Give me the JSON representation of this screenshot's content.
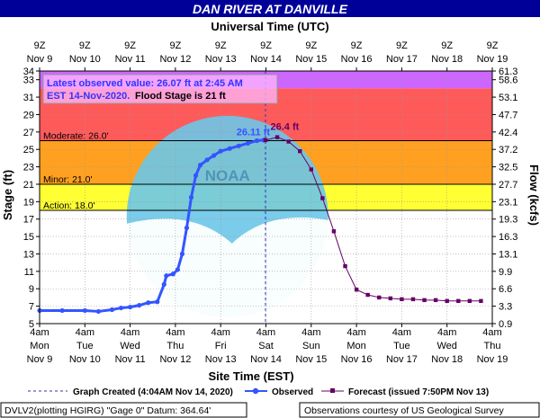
{
  "chart_data": {
    "type": "line",
    "title": "DAN RIVER AT DANVILLE",
    "top_axis_title": "Universal Time (UTC)",
    "bottom_axis_title": "Site Time (EST)",
    "ylabel": "Stage (ft)",
    "ylabel_right": "Flow (kcfs)",
    "ylim": [
      5,
      34
    ],
    "xlim_days": [
      0,
      10
    ],
    "y_ticks": [
      5,
      7,
      9,
      11,
      13,
      15,
      17,
      19,
      21,
      23,
      25,
      27,
      29,
      31,
      33,
      34
    ],
    "y_tick_labels": [
      "5",
      "7",
      "9",
      "11",
      "13",
      "15",
      "17",
      "19",
      "21",
      "23",
      "25",
      "27",
      "29",
      "31",
      "33",
      "34"
    ],
    "right_ticks": [
      {
        "stage": 5,
        "label": "0.9"
      },
      {
        "stage": 7,
        "label": "3.3"
      },
      {
        "stage": 9,
        "label": "6.6"
      },
      {
        "stage": 11,
        "label": "9.9"
      },
      {
        "stage": 13,
        "label": "13.1"
      },
      {
        "stage": 15,
        "label": "16.3"
      },
      {
        "stage": 17,
        "label": "19.3"
      },
      {
        "stage": 19,
        "label": "23.1"
      },
      {
        "stage": 21,
        "label": "27.7"
      },
      {
        "stage": 23,
        "label": "32.5"
      },
      {
        "stage": 25,
        "label": "37.2"
      },
      {
        "stage": 27,
        "label": "42.4"
      },
      {
        "stage": 29,
        "label": "47.7"
      },
      {
        "stage": 31,
        "label": "53.1"
      },
      {
        "stage": 33,
        "label": "58.6"
      },
      {
        "stage": 34,
        "label": "61.3"
      }
    ],
    "bottom_labels": [
      {
        "day": 0,
        "time": "4am",
        "dow": "Mon",
        "date": "Nov 9"
      },
      {
        "day": 1,
        "time": "4am",
        "dow": "Tue",
        "date": "Nov 10"
      },
      {
        "day": 2,
        "time": "4am",
        "dow": "Wed",
        "date": "Nov 11"
      },
      {
        "day": 3,
        "time": "4am",
        "dow": "Thu",
        "date": "Nov 12"
      },
      {
        "day": 4,
        "time": "4am",
        "dow": "Fri",
        "date": "Nov 13"
      },
      {
        "day": 5,
        "time": "4am",
        "dow": "Sat",
        "date": "Nov 14"
      },
      {
        "day": 6,
        "time": "4am",
        "dow": "Sun",
        "date": "Nov 15"
      },
      {
        "day": 7,
        "time": "4am",
        "dow": "Mon",
        "date": "Nov 16"
      },
      {
        "day": 8,
        "time": "4am",
        "dow": "Tue",
        "date": "Nov 17"
      },
      {
        "day": 9,
        "time": "4am",
        "dow": "Wed",
        "date": "Nov 18"
      },
      {
        "day": 10,
        "time": "4am",
        "dow": "Thu",
        "date": "Nov 19"
      }
    ],
    "top_labels": [
      {
        "day": 0,
        "time": "9Z",
        "date": "Nov  9"
      },
      {
        "day": 1,
        "time": "9Z",
        "date": "Nov 10"
      },
      {
        "day": 2,
        "time": "9Z",
        "date": "Nov 11"
      },
      {
        "day": 3,
        "time": "9Z",
        "date": "Nov 12"
      },
      {
        "day": 4,
        "time": "9Z",
        "date": "Nov 13"
      },
      {
        "day": 5,
        "time": "9Z",
        "date": "Nov 14"
      },
      {
        "day": 6,
        "time": "9Z",
        "date": "Nov 15"
      },
      {
        "day": 7,
        "time": "9Z",
        "date": "Nov 16"
      },
      {
        "day": 8,
        "time": "9Z",
        "date": "Nov 17"
      },
      {
        "day": 9,
        "time": "9Z",
        "date": "Nov 18"
      },
      {
        "day": 10,
        "time": "9Z",
        "date": "Nov 19"
      }
    ],
    "bands": [
      {
        "from": 32,
        "to": 34,
        "color": "#cc66ff"
      },
      {
        "from": 26,
        "to": 32,
        "color": "#ff5a5a"
      },
      {
        "from": 21,
        "to": 26,
        "color": "#ffa020"
      },
      {
        "from": 18,
        "to": 21,
        "color": "#ffff33"
      },
      {
        "from": 5,
        "to": 18,
        "color": "#ffffff"
      }
    ],
    "thresholds": [
      {
        "label": "Moderate: 26.0'",
        "value": 26.0
      },
      {
        "label": "Minor: 21.0'",
        "value": 21.0
      },
      {
        "label": "Action: 18.0'",
        "value": 18.0
      }
    ],
    "annotation_lines": [
      {
        "text": "Latest observed value: 26.07 ft at 2:45 AM",
        "color": "#3333ff"
      },
      {
        "text": "EST 14-Nov-2020.",
        "color": "#3333ff"
      },
      {
        "text": "Flood Stage is 21 ft",
        "color": "#000000"
      }
    ],
    "observed_peak_label": "26.11 ft",
    "forecast_peak_label": "26.4 ft",
    "graph_created_day": 4.99,
    "series": [
      {
        "name": "Observed",
        "color": "#3355ff",
        "points": [
          {
            "x": 0.0,
            "y": 6.5
          },
          {
            "x": 0.5,
            "y": 6.5
          },
          {
            "x": 1.0,
            "y": 6.5
          },
          {
            "x": 1.3,
            "y": 6.4
          },
          {
            "x": 1.6,
            "y": 6.6
          },
          {
            "x": 1.8,
            "y": 6.8
          },
          {
            "x": 2.0,
            "y": 6.9
          },
          {
            "x": 2.2,
            "y": 7.1
          },
          {
            "x": 2.4,
            "y": 7.4
          },
          {
            "x": 2.6,
            "y": 7.5
          },
          {
            "x": 2.75,
            "y": 9.5
          },
          {
            "x": 2.8,
            "y": 10.5
          },
          {
            "x": 2.95,
            "y": 10.7
          },
          {
            "x": 3.05,
            "y": 11.2
          },
          {
            "x": 3.15,
            "y": 13.0
          },
          {
            "x": 3.25,
            "y": 16.0
          },
          {
            "x": 3.35,
            "y": 19.5
          },
          {
            "x": 3.45,
            "y": 22.0
          },
          {
            "x": 3.55,
            "y": 23.2
          },
          {
            "x": 3.7,
            "y": 23.8
          },
          {
            "x": 3.85,
            "y": 24.3
          },
          {
            "x": 4.0,
            "y": 24.8
          },
          {
            "x": 4.2,
            "y": 25.1
          },
          {
            "x": 4.4,
            "y": 25.4
          },
          {
            "x": 4.6,
            "y": 25.7
          },
          {
            "x": 4.8,
            "y": 26.0
          },
          {
            "x": 4.95,
            "y": 26.07
          }
        ]
      },
      {
        "name": "Forecast (issued 7:50PM Nov 13)",
        "color": "#660066",
        "points": [
          {
            "x": 4.99,
            "y": 26.07
          },
          {
            "x": 5.25,
            "y": 26.4
          },
          {
            "x": 5.5,
            "y": 25.9
          },
          {
            "x": 5.75,
            "y": 24.8
          },
          {
            "x": 6.0,
            "y": 22.7
          },
          {
            "x": 6.25,
            "y": 19.4
          },
          {
            "x": 6.5,
            "y": 15.6
          },
          {
            "x": 6.75,
            "y": 11.6
          },
          {
            "x": 7.0,
            "y": 8.9
          },
          {
            "x": 7.25,
            "y": 8.3
          },
          {
            "x": 7.5,
            "y": 8.0
          },
          {
            "x": 7.75,
            "y": 7.9
          },
          {
            "x": 8.0,
            "y": 7.8
          },
          {
            "x": 8.25,
            "y": 7.8
          },
          {
            "x": 8.5,
            "y": 7.7
          },
          {
            "x": 8.75,
            "y": 7.7
          },
          {
            "x": 9.0,
            "y": 7.6
          },
          {
            "x": 9.25,
            "y": 7.6
          },
          {
            "x": 9.5,
            "y": 7.6
          },
          {
            "x": 9.75,
            "y": 7.6
          }
        ]
      }
    ]
  },
  "legend": {
    "graph_created": "Graph Created (4:04AM Nov 14, 2020)",
    "observed": "Observed",
    "forecast": "Forecast (issued 7:50PM Nov 13)"
  },
  "footer": {
    "gauge": "DVLV2(plotting HGIRG) \"Gage 0\" Datum: 364.64'",
    "credit": "Observations courtesy of US Geological Survey"
  },
  "colors": {
    "header_bg": "#000099",
    "observed": "#3355ff",
    "forecast": "#660066",
    "watermark": "#6cc6e8"
  }
}
